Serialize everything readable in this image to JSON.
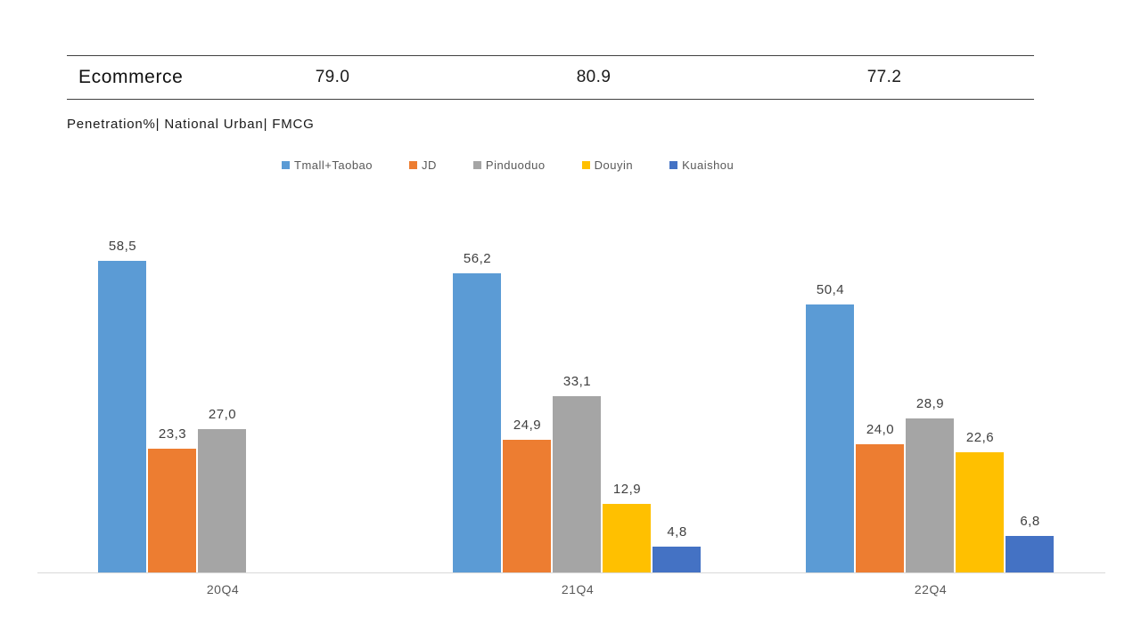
{
  "header": {
    "title": "Ecommerce",
    "values": [
      "79.0",
      "80.9",
      "77.2"
    ]
  },
  "subtitle": "Penetration%| National Urban| FMCG",
  "chart_data": {
    "type": "bar",
    "title": "Ecommerce Penetration% | National Urban | FMCG",
    "categories": [
      "20Q4",
      "21Q4",
      "22Q4"
    ],
    "series": [
      {
        "name": "Tmall+Taobao",
        "color": "#5B9BD5",
        "values": [
          58.5,
          56.2,
          50.4
        ],
        "labels": [
          "58,5",
          "56,2",
          "50,4"
        ]
      },
      {
        "name": "JD",
        "color": "#ED7D31",
        "values": [
          23.3,
          24.9,
          24.0
        ],
        "labels": [
          "23,3",
          "24,9",
          "24,0"
        ]
      },
      {
        "name": "Pinduoduo",
        "color": "#A5A5A5",
        "values": [
          27.0,
          33.1,
          28.9
        ],
        "labels": [
          "27,0",
          "33,1",
          "28,9"
        ]
      },
      {
        "name": "Douyin",
        "color": "#FFC000",
        "values": [
          null,
          12.9,
          22.6
        ],
        "labels": [
          null,
          "12,9",
          "22,6"
        ]
      },
      {
        "name": "Kuaishou",
        "color": "#4472C4",
        "values": [
          null,
          4.8,
          6.8
        ],
        "labels": [
          null,
          "4,8",
          "6,8"
        ]
      }
    ],
    "header_row": {
      "label": "Ecommerce",
      "values_by_category": [
        79.0,
        80.9,
        77.2
      ]
    },
    "ylim": [
      0,
      67
    ],
    "grid": false,
    "legend_position": "top",
    "value_label_decimal_separator": ",",
    "colors": {
      "axis_line": "#D9D9D9",
      "value_label_text": "#404040",
      "legend_text": "#595959",
      "header_text": "#1A1A1A"
    }
  }
}
